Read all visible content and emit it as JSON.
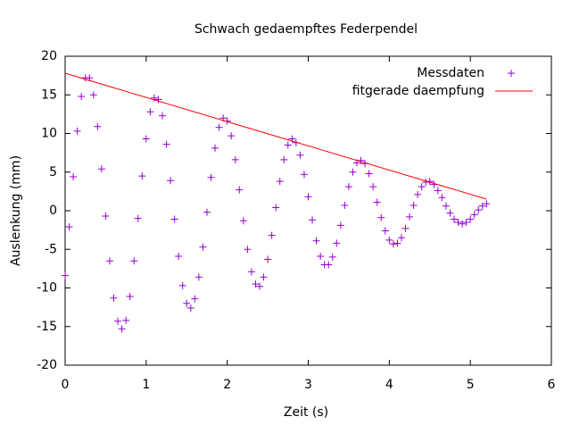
{
  "chart_data": {
    "type": "scatter",
    "title": "Schwach gedaempftes Federpendel",
    "xlabel": "Zeit (s)",
    "ylabel": "Auslenkung (mm)",
    "xlim": [
      0,
      6
    ],
    "xticks": [
      0,
      1,
      2,
      3,
      4,
      5,
      6
    ],
    "ylim": [
      -20,
      20
    ],
    "yticks": [
      -20,
      -15,
      -10,
      -5,
      0,
      5,
      10,
      15,
      20
    ],
    "grid": false,
    "legend": "top-right",
    "series": [
      {
        "name": "Messdaten",
        "type": "scatter",
        "color": "#9400d3",
        "x": [
          0,
          0.05,
          0.1,
          0.15,
          0.2,
          0.25,
          0.3,
          0.35,
          0.4,
          0.45,
          0.5,
          0.55,
          0.6,
          0.65,
          0.7,
          0.75,
          0.8,
          0.85,
          0.9,
          0.95,
          1,
          1.05,
          1.1,
          1.15,
          1.2,
          1.25,
          1.3,
          1.35,
          1.4,
          1.45,
          1.5,
          1.55,
          1.6,
          1.65,
          1.7,
          1.75,
          1.8,
          1.85,
          1.9,
          1.95,
          2,
          2.05,
          2.1,
          2.15,
          2.2,
          2.25,
          2.3,
          2.35,
          2.4,
          2.45,
          2.5,
          2.55,
          2.6,
          2.65,
          2.7,
          2.75,
          2.8,
          2.85,
          2.9,
          2.95,
          3,
          3.05,
          3.1,
          3.15,
          3.2,
          3.25,
          3.3,
          3.35,
          3.4,
          3.45,
          3.5,
          3.55,
          3.6,
          3.65,
          3.7,
          3.75,
          3.8,
          3.85,
          3.9,
          3.95,
          4,
          4.05,
          4.1,
          4.15,
          4.2,
          4.25,
          4.3,
          4.35,
          4.4,
          4.45,
          4.5,
          4.55,
          4.6,
          4.65,
          4.7,
          4.75,
          4.8,
          4.85,
          4.9,
          4.95,
          5,
          5.05,
          5.1,
          5.15,
          5.2
        ],
        "values": [
          -8.4,
          -2.1,
          4.4,
          10.3,
          14.8,
          17.2,
          17.2,
          15.0,
          10.9,
          5.4,
          -0.7,
          -6.5,
          -11.3,
          -14.3,
          -15.3,
          -14.2,
          -11.1,
          -6.5,
          -1.0,
          4.5,
          9.3,
          12.8,
          14.6,
          14.4,
          12.3,
          8.6,
          3.9,
          -1.1,
          -5.9,
          -9.7,
          -12.0,
          -12.6,
          -11.4,
          -8.6,
          -4.7,
          -0.2,
          4.3,
          8.1,
          10.8,
          12.0,
          11.6,
          9.7,
          6.6,
          2.7,
          -1.3,
          -5.0,
          -7.9,
          -9.5,
          -9.8,
          -8.6,
          -6.3,
          -3.2,
          0.4,
          3.8,
          6.6,
          8.5,
          9.3,
          8.8,
          7.2,
          4.7,
          1.8,
          -1.2,
          -3.9,
          -5.9,
          -7.0,
          -7.0,
          -6.0,
          -4.2,
          -1.9,
          0.7,
          3.1,
          5.0,
          6.2,
          6.5,
          6.1,
          4.8,
          3.1,
          1.1,
          -0.9,
          -2.6,
          -3.8,
          -4.3,
          -4.2,
          -3.5,
          -2.3,
          -0.8,
          0.7,
          2.1,
          3.1,
          3.7,
          3.8,
          3.4,
          2.6,
          1.7,
          0.6,
          -0.3,
          -1.1,
          -1.5,
          -1.7,
          -1.5,
          -1.1,
          -0.5,
          0.1,
          0.6,
          0.9
        ]
      },
      {
        "name": "fitgerade daempfung",
        "type": "line",
        "color": "#ff0000",
        "x": [
          0,
          5.2
        ],
        "values": [
          17.8,
          1.5
        ]
      }
    ]
  }
}
